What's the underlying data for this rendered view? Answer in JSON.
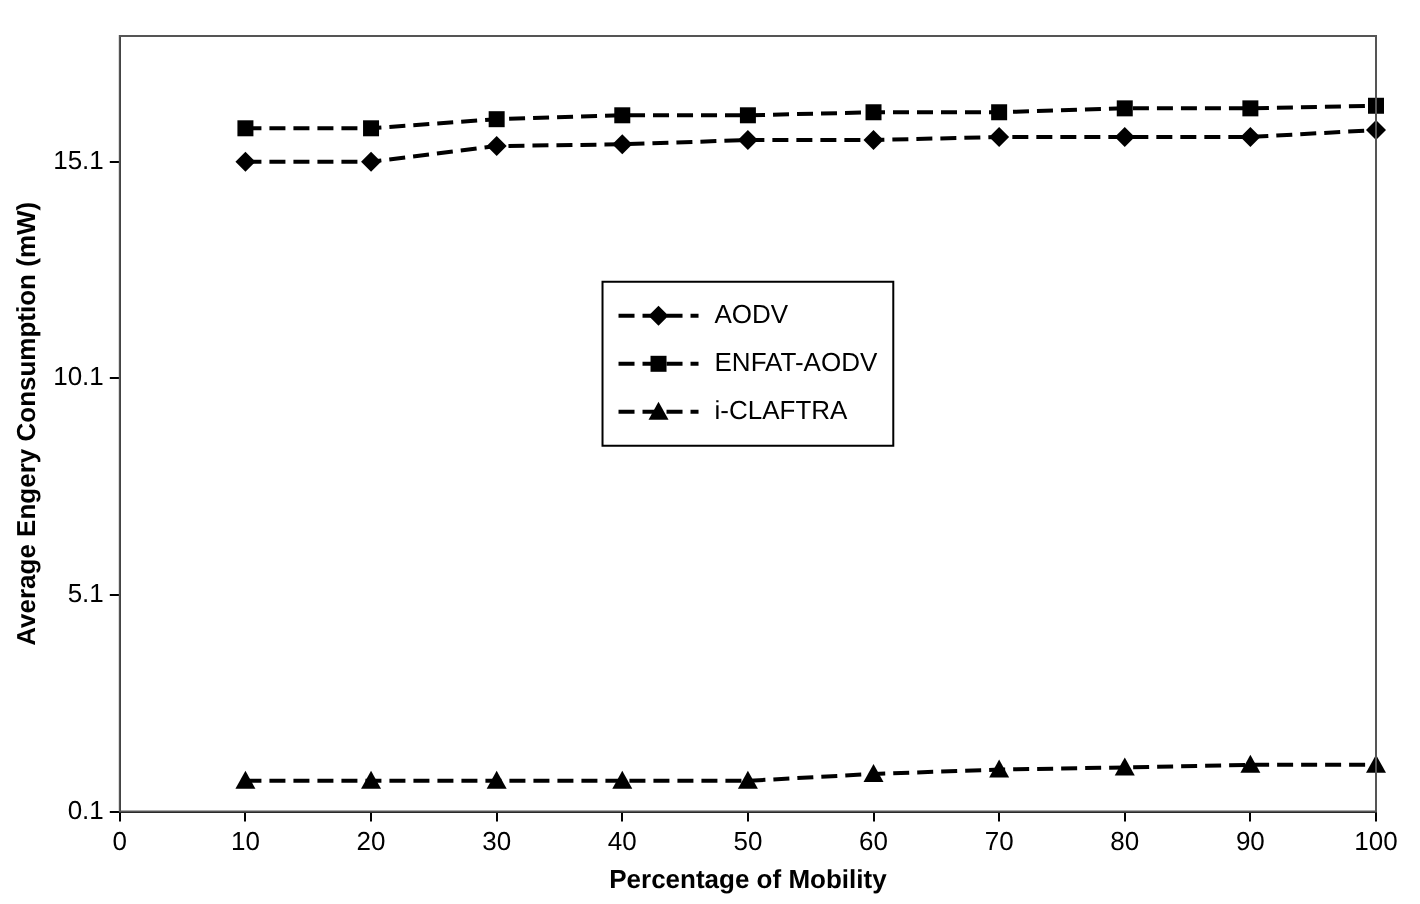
{
  "chart_data": {
    "type": "line",
    "xlabel": "Percentage of Mobility",
    "ylabel": "Average Engery Consumption (mW)",
    "x": [
      10,
      20,
      30,
      40,
      50,
      60,
      70,
      80,
      90,
      100
    ],
    "series": [
      {
        "name": "AODV",
        "color": "#000000",
        "marker": "diamond",
        "line_style": "dashed",
        "values": [
          15.1,
          15.1,
          15.46,
          15.5,
          15.6,
          15.6,
          15.67,
          15.67,
          15.67,
          15.83
        ]
      },
      {
        "name": "ENFAT-AODV",
        "color": "#000000",
        "marker": "square",
        "line_style": "dashed",
        "values": [
          15.87,
          15.87,
          16.08,
          16.17,
          16.17,
          16.24,
          16.24,
          16.33,
          16.33,
          16.39
        ]
      },
      {
        "name": "i-CLAFTRA",
        "color": "#000000",
        "marker": "triangle",
        "line_style": "dashed",
        "values": [
          0.81,
          0.81,
          0.81,
          0.81,
          0.81,
          0.97,
          1.07,
          1.12,
          1.18,
          1.18
        ]
      }
    ],
    "xlim": [
      0,
      100
    ],
    "xticks": [
      0,
      10,
      20,
      30,
      40,
      50,
      60,
      70,
      80,
      90,
      100
    ],
    "ylim": [
      0.1,
      18
    ],
    "yticks": [
      0.1,
      5.1,
      10.1,
      15.1
    ],
    "grid": false,
    "legend": "center"
  }
}
